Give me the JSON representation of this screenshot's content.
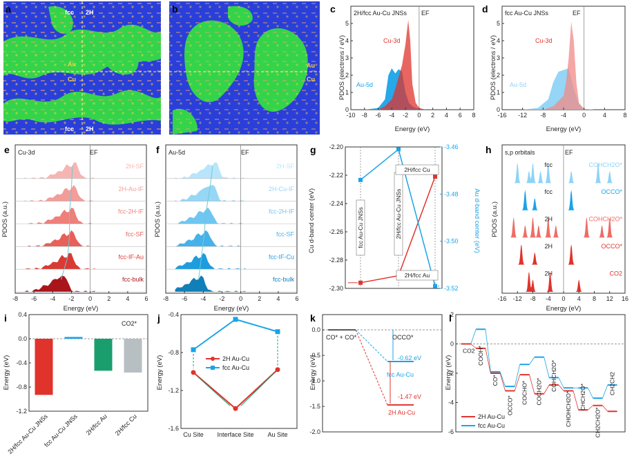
{
  "colors": {
    "red": "#e0332c",
    "red_light": "#f08a86",
    "blue": "#1aa3e8",
    "blue_light": "#8fd3f6",
    "green": "#1b9e6e",
    "gray": "#b8bfc3",
    "micro_blue": "#2a3fd9",
    "micro_green": "#33d44a",
    "micro_dark": "#101a50"
  },
  "panels": {
    "a": {
      "letter": "a",
      "labels": [
        "fcc",
        "2H",
        "Au",
        "Cu",
        "fcc",
        "2H"
      ]
    },
    "b": {
      "letter": "b",
      "labels": [
        "Au",
        "Cu"
      ]
    },
    "c": {
      "letter": "c",
      "title": "2H/fcc Au-Cu JNSs",
      "ef": "EF",
      "cu_label": "Cu-3d",
      "au_label": "Au-5d",
      "xlabel": "Energy (eV)",
      "ylabel": "PDOS (electrons / eV)",
      "xticks": [
        "-10",
        "-8",
        "-6",
        "-4",
        "-2",
        "0",
        "2",
        "4",
        "6",
        "8"
      ],
      "yticks": [
        "0",
        "1",
        "2",
        "3",
        "4",
        "5"
      ]
    },
    "d": {
      "letter": "d",
      "title": "fcc Au-Cu JNSs",
      "ef": "EF",
      "cu_label": "Cu-3d",
      "au_label": "Au-5d",
      "xlabel": "Energy (eV)",
      "ylabel": "PDOS (electrons / eV)",
      "xticks": [
        "-16",
        "-12",
        "-8",
        "-4",
        "0",
        "4",
        "8"
      ],
      "yticks": [
        "0",
        "1",
        "2",
        "3",
        "4",
        "5"
      ]
    },
    "e": {
      "letter": "e",
      "title": "Cu-3d",
      "ef": "EF",
      "xlabel": "Energy (eV)",
      "ylabel": "PDOS (a.u.)",
      "xticks": [
        "-8",
        "-6",
        "-4",
        "-2",
        "0",
        "2",
        "4",
        "6"
      ],
      "rows": [
        "2H-SF",
        "2H-Au-IF",
        "fcc-2H-IF",
        "fcc-SF",
        "fcc-IF-Au",
        "fcc-bulk"
      ]
    },
    "f": {
      "letter": "f",
      "title": "Au-5d",
      "ef": "EF",
      "xlabel": "Energy (eV)",
      "ylabel": "PDOS (a.u.)",
      "xticks": [
        "-8",
        "-6",
        "-4",
        "-2",
        "0",
        "2",
        "4",
        "6"
      ],
      "rows": [
        "2H-SF",
        "2H-Cu-IF",
        "fcc-2H-IF",
        "fcc-SF",
        "fcc-IF-Cu",
        "fcc-bulk"
      ]
    },
    "g": {
      "letter": "g",
      "ylabel_left": "Cu d-band center (eV)",
      "ylabel_right": "Au d-band center (eV)",
      "yticks_left": [
        "-2.20",
        "-2.22",
        "-2.24",
        "-2.26",
        "-2.28",
        "-2.30"
      ],
      "yticks_right": [
        "-3.46",
        "-3.48",
        "-3.50",
        "-3.52"
      ],
      "labels": [
        "fcc Au-Cu JNSs",
        "2H/fcc Au-Cu JNSs",
        "2H/fcc Cu",
        "2H/fcc Au"
      ]
    },
    "h": {
      "letter": "h",
      "title": "s,p orbitals",
      "ef": "EF",
      "xlabel": "Energy (eV)",
      "ylabel": "PDOS (a.u.)",
      "xticks": [
        "-16",
        "-12",
        "-8",
        "-4",
        "0",
        "4",
        "8",
        "12",
        "16"
      ],
      "rows": [
        {
          "tag": "fcc",
          "species": "COHCH2O*"
        },
        {
          "tag": "fcc",
          "species": "OCCO*"
        },
        {
          "tag": "2H",
          "species": "COHCH2O*"
        },
        {
          "tag": "2H",
          "species": "OCCO*"
        },
        {
          "tag": "2H",
          "species": "CO2"
        }
      ]
    },
    "i": {
      "letter": "i",
      "legend": "CO2*",
      "ylabel": "Energy (eV)",
      "yticks": [
        "0.4",
        "0.0",
        "-0.4",
        "-0.8",
        "-1.2"
      ]
    },
    "j": {
      "letter": "j",
      "ylabel": "Energy (eV)",
      "legend_2h": "2H Au-Cu",
      "legend_fcc": "fcc Au-Cu",
      "yticks": [
        "-0.4",
        "-0.8",
        "-1.2",
        "-1.6"
      ]
    },
    "k": {
      "letter": "k",
      "ylabel": "Energy (eV)",
      "start_label": "CO* + CO*",
      "end_label": "OCCO*",
      "fcc_value": "-0.62 eV",
      "fcc_label": "fcc Au-Cu",
      "h2_value": "-1.47 eV",
      "h2_label": "2H Au-Cu",
      "yticks": [
        "0.0",
        "-0.5",
        "-1.0",
        "-1.5",
        "-2.0"
      ]
    },
    "l": {
      "letter": "l",
      "ylabel": "Energy (eV)",
      "legend_2h": "2H Au-Cu",
      "legend_fcc": "fcc Au-Cu",
      "yticks": [
        "2",
        "0",
        "-2",
        "-4",
        "-6"
      ],
      "steps": [
        "CO2",
        "COOH*",
        "CO*",
        "OCCO*",
        "COCHO*",
        "COCH2O*",
        "COHCH2O*",
        "CHOHCH2O*",
        "CHCH2O*",
        "CH2CH2O*",
        "CH2CH2"
      ]
    }
  },
  "chart_data": [
    {
      "panel": "c",
      "type": "area",
      "title": "2H/fcc Au-Cu JNSs",
      "xlabel": "Energy (eV)",
      "ylabel": "PDOS (electrons / eV)",
      "xlim": [
        -10,
        8
      ],
      "ylim": [
        0,
        6
      ],
      "series": [
        {
          "name": "Au-5d",
          "x": [
            -8,
            -6,
            -5,
            -4.5,
            -4,
            -3.5,
            -3,
            -2.5,
            -2,
            -1.5,
            -1,
            -0.5,
            0,
            1
          ],
          "values": [
            0,
            0.1,
            0.6,
            2.0,
            2.4,
            2.1,
            2.35,
            2.2,
            1.0,
            0.4,
            0.2,
            0.1,
            0.05,
            0
          ]
        },
        {
          "name": "Cu-3d",
          "x": [
            -6,
            -5,
            -4,
            -3.5,
            -3,
            -2.5,
            -2,
            -1.6,
            -1.3,
            -1,
            -0.5,
            0,
            1
          ],
          "values": [
            0,
            0.2,
            0.6,
            1.2,
            1.9,
            2.6,
            3.8,
            5.2,
            4.0,
            1.5,
            0.4,
            0.1,
            0
          ]
        }
      ]
    },
    {
      "panel": "d",
      "type": "area",
      "title": "fcc Au-Cu JNSs",
      "xlabel": "Energy (eV)",
      "ylabel": "PDOS (electrons / eV)",
      "xlim": [
        -16,
        8
      ],
      "ylim": [
        0,
        6
      ],
      "series": [
        {
          "name": "Au-5d",
          "x": [
            -12,
            -9,
            -7,
            -6,
            -5,
            -4,
            -3,
            -2,
            -1,
            0,
            2
          ],
          "values": [
            0,
            0.1,
            0.6,
            1.6,
            2.2,
            2.3,
            2.4,
            1.2,
            0.3,
            0.05,
            0
          ]
        },
        {
          "name": "Cu-3d",
          "x": [
            -8,
            -6,
            -4,
            -3.5,
            -3,
            -2.5,
            -2,
            -1.5,
            -1,
            0,
            2
          ],
          "values": [
            0,
            0.2,
            0.8,
            1.6,
            3.0,
            5.1,
            4.0,
            1.6,
            0.4,
            0.05,
            0
          ]
        }
      ]
    },
    {
      "panel": "e",
      "type": "area",
      "title": "Cu-3d",
      "xlabel": "Energy (eV)",
      "ylabel": "PDOS (a.u.)",
      "xlim": [
        -8,
        6
      ],
      "series": [
        {
          "name": "2H-SF",
          "peak": -1.6
        },
        {
          "name": "2H-Au-IF",
          "peak": -1.7
        },
        {
          "name": "fcc-2H-IF",
          "peak": -1.9
        },
        {
          "name": "fcc-SF",
          "peak": -1.9
        },
        {
          "name": "fcc-IF-Au",
          "peak": -2.1
        },
        {
          "name": "fcc-bulk",
          "peak": -2.8
        }
      ]
    },
    {
      "panel": "f",
      "type": "area",
      "title": "Au-5d",
      "xlabel": "Energy (eV)",
      "ylabel": "PDOS (a.u.)",
      "xlim": [
        -8,
        6
      ],
      "series": [
        {
          "name": "2H-SF",
          "peak": -2.7
        },
        {
          "name": "2H-Cu-IF",
          "peak": -3.0
        },
        {
          "name": "fcc-2H-IF",
          "peak": -3.4
        },
        {
          "name": "fcc-SF",
          "peak": -3.6
        },
        {
          "name": "fcc-IF-Cu",
          "peak": -3.9
        },
        {
          "name": "fcc-bulk",
          "peak": -4.2
        }
      ]
    },
    {
      "panel": "g",
      "type": "line",
      "categories": [
        "fcc Au-Cu JNSs",
        "2H/fcc Au-Cu JNSs",
        "2H/fcc"
      ],
      "ylabel": "Cu d-band center (eV)",
      "ylabel_right": "Au d-band center (eV)",
      "series": [
        {
          "name": "Cu d-band center",
          "axis": "left",
          "values": [
            -2.296,
            -2.291,
            -2.221
          ]
        },
        {
          "name": "Au d-band center",
          "axis": "right",
          "values": [
            -3.474,
            -3.461,
            -3.519
          ]
        }
      ],
      "ylim": [
        -2.3,
        -2.2
      ],
      "ylim_right": [
        -3.52,
        -3.46
      ]
    },
    {
      "panel": "h",
      "type": "area",
      "title": "s,p orbitals",
      "xlabel": "Energy (eV)",
      "ylabel": "PDOS (a.u.)",
      "xlim": [
        -16,
        16
      ],
      "series": [
        {
          "name": "fcc COHCH2O*",
          "peaks": [
            -12,
            -9,
            -8,
            -6,
            -4,
            2,
            9,
            12
          ]
        },
        {
          "name": "fcc OCCO*",
          "peaks": [
            -10,
            -7.5,
            2
          ]
        },
        {
          "name": "2H COHCH2O*",
          "peaks": [
            -13,
            -10,
            -8,
            -6.5,
            -4,
            -2,
            6,
            10,
            12
          ]
        },
        {
          "name": "2H OCCO*",
          "peaks": [
            -11,
            -7.5,
            2
          ]
        },
        {
          "name": "2H CO2",
          "peaks": [
            -9,
            -8,
            -3.5,
            4
          ]
        }
      ]
    },
    {
      "panel": "i",
      "type": "bar",
      "categories": [
        "2H/fcc Au-Cu JNSs",
        "fcc Au-Cu JNSs",
        "2H/fcc Au",
        "2H/fcc Cu"
      ],
      "values": [
        -0.93,
        0.03,
        -0.53,
        -0.56
      ],
      "ylabel": "Energy (eV)",
      "ylim": [
        -1.2,
        0.4
      ],
      "legend": "CO2*"
    },
    {
      "panel": "j",
      "type": "line",
      "categories": [
        "Cu Site",
        "Interface Site",
        "Au Site"
      ],
      "ylabel": "Energy (eV)",
      "ylim": [
        -1.6,
        -0.4
      ],
      "series": [
        {
          "name": "2H Au-Cu",
          "values": [
            -1.01,
            -1.39,
            -0.98
          ]
        },
        {
          "name": "fcc Au-Cu",
          "values": [
            -0.77,
            -0.45,
            -0.58
          ]
        }
      ]
    },
    {
      "panel": "k",
      "type": "line",
      "categories": [
        "CO* + CO*",
        "OCCO*"
      ],
      "ylabel": "Energy (eV)",
      "ylim": [
        -2.0,
        0.3
      ],
      "series": [
        {
          "name": "fcc Au-Cu",
          "values": [
            0,
            -0.62
          ]
        },
        {
          "name": "2H Au-Cu",
          "values": [
            0,
            -1.47
          ]
        }
      ]
    },
    {
      "panel": "l",
      "type": "line",
      "categories": [
        "CO2",
        "COOH*",
        "CO*",
        "OCCO*",
        "COCHO*",
        "COCH2O*",
        "COHCH2O*",
        "CHOHCH2O*",
        "CHCH2O*",
        "CH2CH2O*",
        "CH2CH2"
      ],
      "ylabel": "Energy (eV)",
      "ylim": [
        -6,
        2
      ],
      "series": [
        {
          "name": "2H Au-Cu",
          "values": [
            0,
            -0.3,
            -2.0,
            -3.2,
            -2.1,
            -3.4,
            -2.8,
            -3.2,
            -4.5,
            -4.2,
            -4.6
          ]
        },
        {
          "name": "fcc Au-Cu",
          "values": [
            0,
            1.0,
            -1.9,
            -2.9,
            -1.4,
            -0.9,
            -2.3,
            -3.0,
            -3.0,
            -3.7,
            -2.8
          ]
        }
      ]
    }
  ]
}
